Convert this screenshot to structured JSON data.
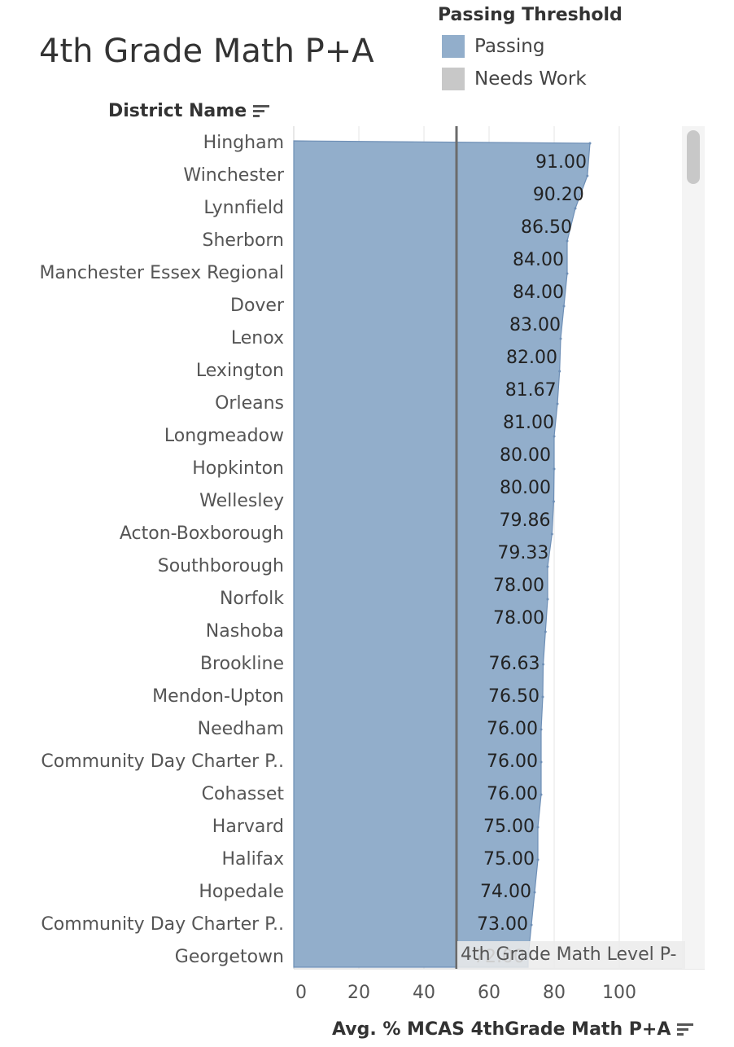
{
  "title": "4th Grade Math P+A",
  "legend": {
    "title": "Passing Threshold",
    "items": [
      {
        "label": "Passing",
        "color": "#92aecb"
      },
      {
        "label": "Needs Work",
        "color": "#c8c8c8"
      }
    ]
  },
  "row_header": "District Name",
  "reference_line_label": "4th Grade Math Level P-",
  "chart_data": {
    "type": "area",
    "orientation": "horizontal",
    "categories": [
      "Hingham",
      "Winchester",
      "Lynnfield",
      "Sherborn",
      "Manchester Essex Regional",
      "Dover",
      "Lenox",
      "Lexington",
      "Orleans",
      "Longmeadow",
      "Hopkinton",
      "Wellesley",
      "Acton-Boxborough",
      "Southborough",
      "Norfolk",
      "Nashoba",
      "Brookline",
      "Mendon-Upton",
      "Needham",
      "Community Day Charter P..",
      "Cohasset",
      "Harvard",
      "Halifax",
      "Hopedale",
      "Community Day Charter P..",
      "Georgetown"
    ],
    "series": [
      {
        "values": [
          91.0,
          90.2,
          86.5,
          84.0,
          84.0,
          83.0,
          82.0,
          81.67,
          81.0,
          80.0,
          80.0,
          79.86,
          79.33,
          78.0,
          78.0,
          null,
          76.63,
          76.5,
          76.0,
          76.0,
          76.0,
          75.0,
          75.0,
          74.0,
          73.0,
          72.0
        ]
      }
    ],
    "data_labels": [
      "91.00",
      "90.20",
      "86.50",
      "84.00",
      "84.00",
      "83.00",
      "82.00",
      "81.67",
      "81.00",
      "80.00",
      "80.00",
      "79.86",
      "79.33",
      "78.00",
      "78.00",
      "",
      "76.63",
      "76.50",
      "76.00",
      "76.00",
      "76.00",
      "75.00",
      "75.00",
      "74.00",
      "73.00",
      "72.00"
    ],
    "xlabel": "Avg. % MCAS 4thGrade Math P+A",
    "xticks": [
      0,
      20,
      40,
      60,
      80,
      100
    ],
    "xlim": [
      0,
      125
    ],
    "reference_line": 50,
    "grid": true,
    "legend_position": "top-right",
    "color": "#92aecb"
  }
}
